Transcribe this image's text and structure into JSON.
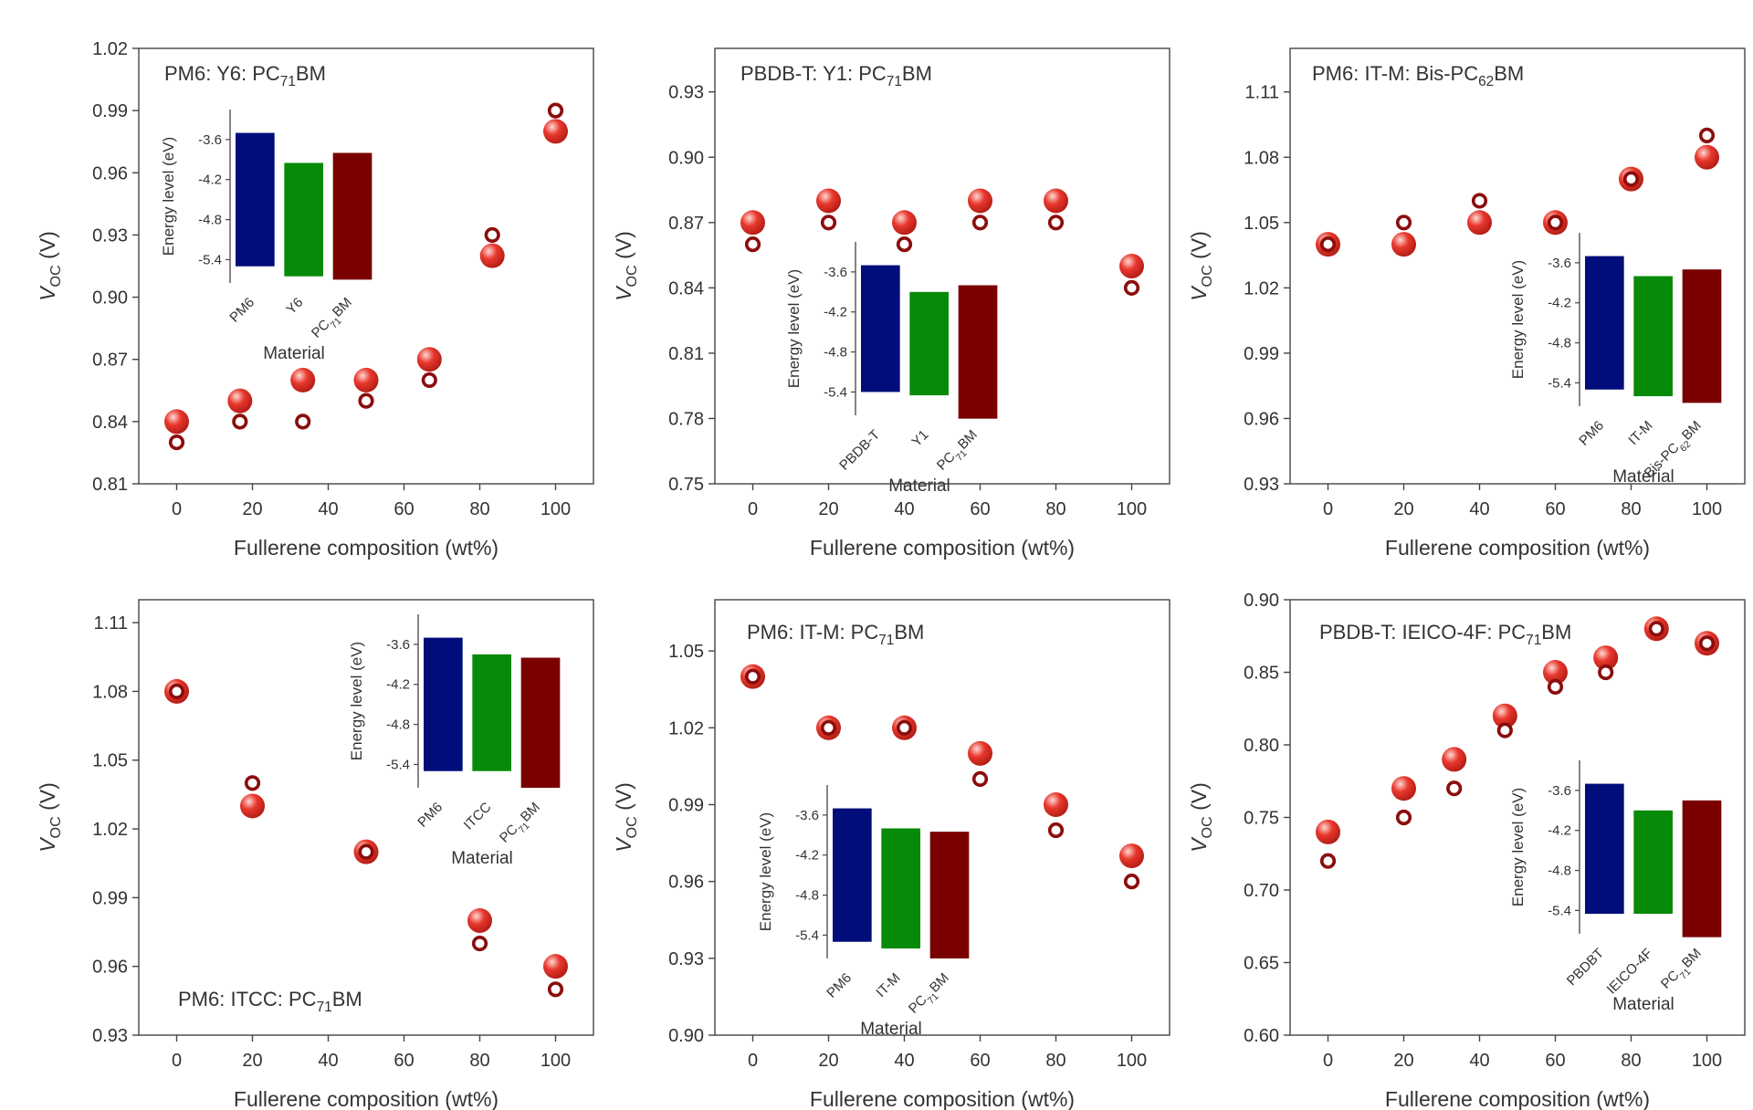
{
  "colors": {
    "simulated_fill": "#e8372d",
    "simulated_highlight": "#ffd9d2",
    "experimental_ring": "#8b0d0d",
    "bar_donor": "#000d7a",
    "bar_acceptor": "#078a07",
    "bar_fullerene": "#7a0000"
  },
  "chart_data": [
    {
      "type": "scatter",
      "title": {
        "main": "PM6: Y6: PC",
        "sub": "71",
        "tail": "BM"
      },
      "xlabel": "Fullerene composition (wt%)",
      "ylabel": {
        "main": "V",
        "sub": "OC",
        "tail": " (V)"
      },
      "xlim": [
        -10,
        110
      ],
      "ylim": [
        0.81,
        1.02
      ],
      "xticks": [
        0,
        20,
        40,
        60,
        80,
        100
      ],
      "xtick_labels": [
        "0",
        "20",
        "40",
        "60",
        "80",
        "100"
      ],
      "yticks": [
        0.81,
        0.84,
        0.87,
        0.9,
        0.93,
        0.96,
        0.99,
        1.02
      ],
      "ytick_labels": [
        "0.81",
        "0.84",
        "0.87",
        "0.90",
        "0.93",
        "0.96",
        "0.99",
        "1.02"
      ],
      "series": [
        {
          "name": "filled",
          "x": [
            0,
            16.7,
            33.3,
            50,
            66.7,
            83.3,
            100
          ],
          "y": [
            0.84,
            0.85,
            0.86,
            0.86,
            0.87,
            0.92,
            0.98
          ]
        },
        {
          "name": "open",
          "x": [
            0,
            16.7,
            33.3,
            50,
            66.7,
            83.3,
            100
          ],
          "y": [
            0.83,
            0.84,
            0.84,
            0.85,
            0.86,
            0.93,
            0.99
          ]
        }
      ],
      "inset": {
        "ylabel": "Energy level (eV)",
        "xlabel": "Material",
        "ylim": [
          -5.75,
          -3.15
        ],
        "yticks": [
          -3.6,
          -4.2,
          -4.8,
          -5.4
        ],
        "ytick_labels": [
          "-3.6",
          "-4.2",
          "-4.8",
          "-5.4"
        ],
        "bars": [
          {
            "name": "PM6",
            "label": "PM6",
            "top": -3.5,
            "bottom": -5.5
          },
          {
            "name": "Y6",
            "label": "Y6",
            "top": -3.95,
            "bottom": -5.65
          },
          {
            "name": "PC71BM",
            "label": {
              "main": "PC",
              "sub": "71",
              "tail": "BM"
            },
            "top": -3.8,
            "bottom": -5.7
          }
        ]
      }
    },
    {
      "type": "scatter",
      "title": {
        "main": "PBDB-T: Y1: PC",
        "sub": "71",
        "tail": "BM"
      },
      "xlabel": "Fullerene composition (wt%)",
      "ylabel": {
        "main": "V",
        "sub": "OC",
        "tail": " (V)"
      },
      "xlim": [
        -10,
        110
      ],
      "ylim": [
        0.75,
        0.95
      ],
      "xticks": [
        0,
        20,
        40,
        60,
        80,
        100
      ],
      "xtick_labels": [
        "0",
        "20",
        "40",
        "60",
        "80",
        "100"
      ],
      "yticks": [
        0.75,
        0.78,
        0.81,
        0.84,
        0.87,
        0.9,
        0.93
      ],
      "ytick_labels": [
        "0.75",
        "0.78",
        "0.81",
        "0.84",
        "0.87",
        "0.90",
        "0.93"
      ],
      "series": [
        {
          "name": "filled",
          "x": [
            0,
            20,
            40,
            60,
            80,
            100
          ],
          "y": [
            0.87,
            0.88,
            0.87,
            0.88,
            0.88,
            0.85
          ]
        },
        {
          "name": "open",
          "x": [
            0,
            20,
            40,
            60,
            80,
            100
          ],
          "y": [
            0.86,
            0.87,
            0.86,
            0.87,
            0.87,
            0.84
          ]
        }
      ],
      "inset": {
        "ylabel": "Energy level (eV)",
        "xlabel": "Material",
        "ylim": [
          -5.75,
          -3.15
        ],
        "yticks": [
          -3.6,
          -4.2,
          -4.8,
          -5.4
        ],
        "ytick_labels": [
          "-3.6",
          "-4.2",
          "-4.8",
          "-5.4"
        ],
        "bars": [
          {
            "name": "PBDB-T",
            "label": "PBDB-T",
            "top": -3.5,
            "bottom": -5.4
          },
          {
            "name": "Y1",
            "label": "Y1",
            "top": -3.9,
            "bottom": -5.45
          },
          {
            "name": "PC71BM",
            "label": {
              "main": "PC",
              "sub": "71",
              "tail": "BM"
            },
            "top": -3.8,
            "bottom": -5.8
          }
        ]
      }
    },
    {
      "type": "scatter",
      "title": {
        "main": "PM6: IT-M: Bis-PC",
        "sub": "62",
        "tail": "BM"
      },
      "xlabel": "Fullerene composition (wt%)",
      "ylabel": {
        "main": "V",
        "sub": "OC",
        "tail": " (V)"
      },
      "xlim": [
        -10,
        110
      ],
      "ylim": [
        0.93,
        1.13
      ],
      "xticks": [
        0,
        20,
        40,
        60,
        80,
        100
      ],
      "xtick_labels": [
        "0",
        "20",
        "40",
        "60",
        "80",
        "100"
      ],
      "yticks": [
        0.93,
        0.96,
        0.99,
        1.02,
        1.05,
        1.08,
        1.11
      ],
      "ytick_labels": [
        "0.93",
        "0.96",
        "0.99",
        "1.02",
        "1.05",
        "1.08",
        "1.11"
      ],
      "series": [
        {
          "name": "filled",
          "x": [
            0,
            20,
            40,
            60,
            80,
            100
          ],
          "y": [
            1.04,
            1.04,
            1.05,
            1.05,
            1.07,
            1.08
          ]
        },
        {
          "name": "open",
          "x": [
            0,
            20,
            40,
            60,
            80,
            100
          ],
          "y": [
            1.04,
            1.05,
            1.06,
            1.05,
            1.07,
            1.09
          ]
        }
      ],
      "inset": {
        "ylabel": "Energy level (eV)",
        "xlabel": "Material",
        "ylim": [
          -5.75,
          -3.15
        ],
        "yticks": [
          -3.6,
          -4.2,
          -4.8,
          -5.4
        ],
        "ytick_labels": [
          "-3.6",
          "-4.2",
          "-4.8",
          "-5.4"
        ],
        "bars": [
          {
            "name": "PM6",
            "label": "PM6",
            "top": -3.5,
            "bottom": -5.5
          },
          {
            "name": "IT-M",
            "label": "IT-M",
            "top": -3.8,
            "bottom": -5.6
          },
          {
            "name": "Bis-PC62BM",
            "label": {
              "main": "Bis-PC",
              "sub": "62",
              "tail": "BM"
            },
            "top": -3.7,
            "bottom": -5.7
          }
        ]
      }
    },
    {
      "type": "scatter",
      "title": {
        "main": "PM6: ITCC: PC",
        "sub": "71",
        "tail": "BM"
      },
      "xlabel": "Fullerene composition (wt%)",
      "ylabel": {
        "main": "V",
        "sub": "OC",
        "tail": " (V)"
      },
      "xlim": [
        -10,
        110
      ],
      "ylim": [
        0.93,
        1.12
      ],
      "xticks": [
        0,
        20,
        40,
        60,
        80,
        100
      ],
      "xtick_labels": [
        "0",
        "20",
        "40",
        "60",
        "80",
        "100"
      ],
      "yticks": [
        0.93,
        0.96,
        0.99,
        1.02,
        1.05,
        1.08,
        1.11
      ],
      "ytick_labels": [
        "0.93",
        "0.96",
        "0.99",
        "1.02",
        "1.05",
        "1.08",
        "1.11"
      ],
      "series": [
        {
          "name": "filled",
          "x": [
            0,
            20,
            50,
            80,
            100
          ],
          "y": [
            1.08,
            1.03,
            1.01,
            0.98,
            0.96
          ]
        },
        {
          "name": "open",
          "x": [
            0,
            20,
            50,
            80,
            100
          ],
          "y": [
            1.08,
            1.04,
            1.01,
            0.97,
            0.95
          ]
        }
      ],
      "inset": {
        "ylabel": "Energy level (eV)",
        "xlabel": "Material",
        "ylim": [
          -5.75,
          -3.15
        ],
        "yticks": [
          -3.6,
          -4.2,
          -4.8,
          -5.4
        ],
        "ytick_labels": [
          "-3.6",
          "-4.2",
          "-4.8",
          "-5.4"
        ],
        "bars": [
          {
            "name": "PM6",
            "label": "PM6",
            "top": -3.5,
            "bottom": -5.5
          },
          {
            "name": "ITCC",
            "label": "ITCC",
            "top": -3.75,
            "bottom": -5.5
          },
          {
            "name": "PC71BM",
            "label": {
              "main": "PC",
              "sub": "71",
              "tail": "BM"
            },
            "top": -3.8,
            "bottom": -5.75
          }
        ]
      }
    },
    {
      "type": "scatter",
      "title": {
        "main": "PM6: IT-M: PC",
        "sub": "71",
        "tail": "BM"
      },
      "xlabel": "Fullerene composition (wt%)",
      "ylabel": {
        "main": "V",
        "sub": "OC",
        "tail": " (V)"
      },
      "xlim": [
        -10,
        110
      ],
      "ylim": [
        0.9,
        1.07
      ],
      "xticks": [
        0,
        20,
        40,
        60,
        80,
        100
      ],
      "xtick_labels": [
        "0",
        "20",
        "40",
        "60",
        "80",
        "100"
      ],
      "yticks": [
        0.9,
        0.93,
        0.96,
        0.99,
        1.02,
        1.05
      ],
      "ytick_labels": [
        "0.90",
        "0.93",
        "0.96",
        "0.99",
        "1.02",
        "1.05"
      ],
      "series": [
        {
          "name": "filled",
          "x": [
            0,
            20,
            40,
            60,
            80,
            100
          ],
          "y": [
            1.04,
            1.02,
            1.02,
            1.01,
            0.99,
            0.97
          ]
        },
        {
          "name": "open",
          "x": [
            0,
            20,
            40,
            60,
            80,
            100
          ],
          "y": [
            1.04,
            1.02,
            1.02,
            1.0,
            0.98,
            0.96
          ]
        }
      ],
      "inset": {
        "ylabel": "Energy level (eV)",
        "xlabel": "Material",
        "ylim": [
          -5.75,
          -3.15
        ],
        "yticks": [
          -3.6,
          -4.2,
          -4.8,
          -5.4
        ],
        "ytick_labels": [
          "-3.6",
          "-4.2",
          "-4.8",
          "-5.4"
        ],
        "bars": [
          {
            "name": "PM6",
            "label": "PM6",
            "top": -3.5,
            "bottom": -5.5
          },
          {
            "name": "IT-M",
            "label": "IT-M",
            "top": -3.8,
            "bottom": -5.6
          },
          {
            "name": "PC71BM",
            "label": {
              "main": "PC",
              "sub": "71",
              "tail": "BM"
            },
            "top": -3.85,
            "bottom": -5.75
          }
        ]
      }
    },
    {
      "type": "scatter",
      "title": {
        "main": "PBDB-T: IEICO-4F: PC",
        "sub": "71",
        "tail": "BM"
      },
      "xlabel": "Fullerene composition (wt%)",
      "ylabel": {
        "main": "V",
        "sub": "OC",
        "tail": " (V)"
      },
      "xlim": [
        -10,
        110
      ],
      "ylim": [
        0.6,
        0.9
      ],
      "xticks": [
        0,
        20,
        40,
        60,
        80,
        100
      ],
      "xtick_labels": [
        "0",
        "20",
        "40",
        "60",
        "80",
        "100"
      ],
      "yticks": [
        0.6,
        0.65,
        0.7,
        0.75,
        0.8,
        0.85,
        0.9
      ],
      "ytick_labels": [
        "0.60",
        "0.65",
        "0.70",
        "0.75",
        "0.80",
        "0.85",
        "0.90"
      ],
      "series": [
        {
          "name": "filled",
          "x": [
            0,
            20,
            33.3,
            46.7,
            60,
            73.3,
            86.7,
            100
          ],
          "y": [
            0.74,
            0.77,
            0.79,
            0.82,
            0.85,
            0.86,
            0.88,
            0.87
          ]
        },
        {
          "name": "open",
          "x": [
            0,
            20,
            33.3,
            46.7,
            60,
            73.3,
            86.7,
            100
          ],
          "y": [
            0.72,
            0.75,
            0.77,
            0.81,
            0.84,
            0.85,
            0.88,
            0.87
          ]
        }
      ],
      "inset": {
        "ylabel": "Energy level (eV)",
        "xlabel": "Material",
        "ylim": [
          -5.75,
          -3.15
        ],
        "yticks": [
          -3.6,
          -4.2,
          -4.8,
          -5.4
        ],
        "ytick_labels": [
          "-3.6",
          "-4.2",
          "-4.8",
          "-5.4"
        ],
        "bars": [
          {
            "name": "PBDBT",
            "label": "PBDBT",
            "top": -3.5,
            "bottom": -5.45
          },
          {
            "name": "IEICO-4F",
            "label": "IEICO-4F",
            "top": -3.9,
            "bottom": -5.45
          },
          {
            "name": "PC71BM",
            "label": {
              "main": "PC",
              "sub": "71",
              "tail": "BM"
            },
            "top": -3.75,
            "bottom": -5.8
          }
        ]
      }
    }
  ]
}
